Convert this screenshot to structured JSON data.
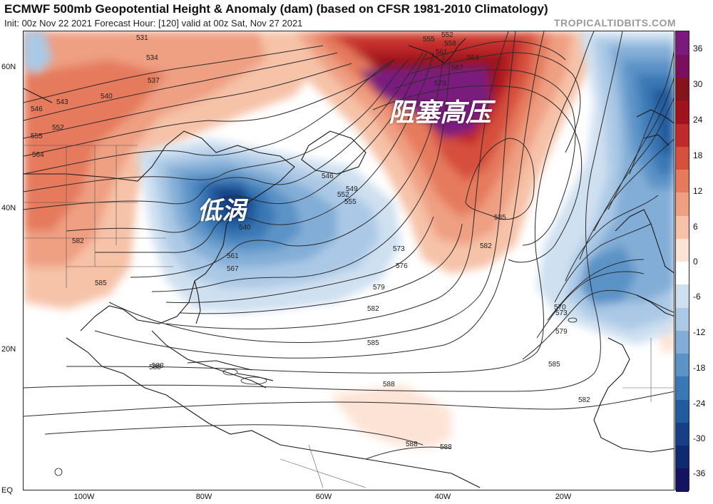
{
  "header": {
    "title": "ECMWF 500mb Geopotential Height & Anomaly (dam) (based on CFSR 1981-2010 Climatology)",
    "subtitle": "Init: 00z Nov 22 2021   Forecast Hour: [120]   valid at 00z Sat, Nov 27 2021",
    "brand": "TROPICALTIDBITS.COM"
  },
  "axes": {
    "lat_labels": [
      "60N",
      "40N",
      "20N",
      "EQ"
    ],
    "lon_labels": [
      "100W",
      "80W",
      "60W",
      "40W",
      "20W"
    ]
  },
  "colorbar": {
    "labels": [
      "36",
      "30",
      "24",
      "18",
      "12",
      "6",
      "0",
      "-6",
      "-12",
      "-18",
      "-24",
      "-30",
      "-36"
    ],
    "colors": [
      "#15125e",
      "#0d2b6e",
      "#163f86",
      "#235c9e",
      "#3a78b5",
      "#5b93c7",
      "#82add6",
      "#abc9e6",
      "#cfe0f0",
      "#ffffff",
      "#fde3d6",
      "#f6c2a8",
      "#ef9f82",
      "#e57a5d",
      "#d6503e",
      "#c12a2b",
      "#a1121f",
      "#86121b",
      "#7b0f5d",
      "#7a1a7e"
    ]
  },
  "annotations": {
    "low": "低涡",
    "block": "阻塞高压"
  },
  "contour_labels": [
    "531",
    "534",
    "537",
    "540",
    "543",
    "546",
    "552",
    "555",
    "564",
    "582",
    "585",
    "588",
    "546",
    "549",
    "552",
    "555",
    "540",
    "561",
    "567",
    "573",
    "576",
    "579",
    "582",
    "585",
    "588",
    "588",
    "588",
    "588",
    "585",
    "582",
    "579",
    "573",
    "570",
    "585",
    "582",
    "573",
    "567",
    "564",
    "561",
    "558",
    "555",
    "552"
  ]
}
